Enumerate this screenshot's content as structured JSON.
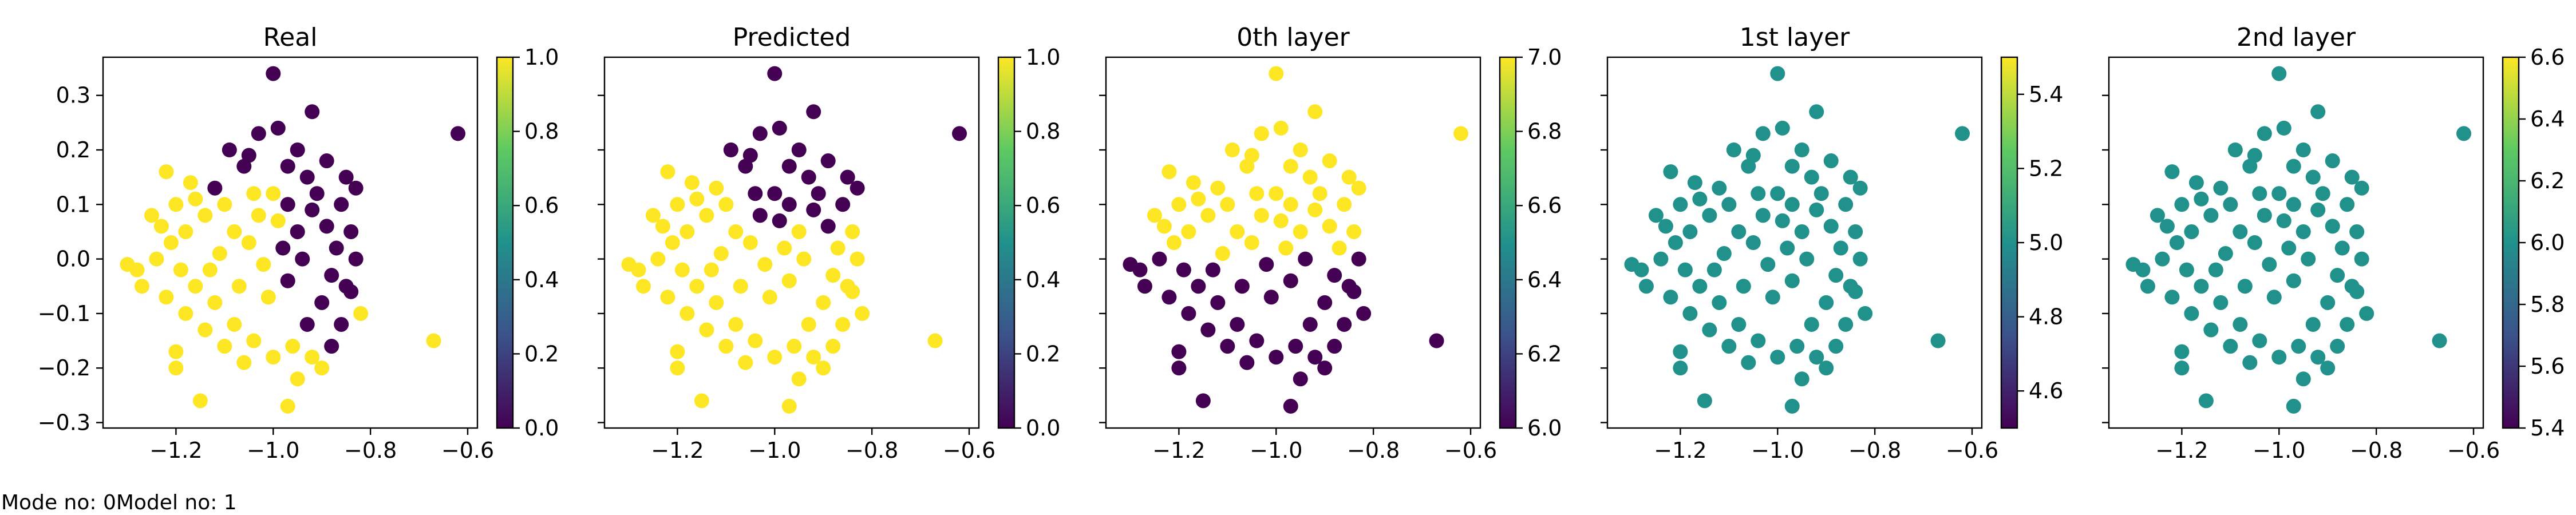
{
  "footer": {
    "mode_text": "Mode no: 0",
    "model_text": "Model no: 1"
  },
  "colormap": [
    "#440154",
    "#3b528b",
    "#21918c",
    "#5ec962",
    "#fde725"
  ],
  "chart_data": [
    {
      "type": "scatter",
      "title": "Real",
      "coloring": "real",
      "xlim": [
        -1.35,
        -0.58
      ],
      "ylim": [
        -0.31,
        0.37
      ],
      "xticks": [
        "−1.2",
        "−1.0",
        "−0.8",
        "−0.6"
      ],
      "xtick_values": [
        -1.2,
        -1.0,
        -0.8,
        -0.6
      ],
      "yticks": [
        "−0.3",
        "−0.2",
        "−0.1",
        "0.0",
        "0.1",
        "0.2",
        "0.3"
      ],
      "ytick_values": [
        -0.3,
        -0.2,
        -0.1,
        0.0,
        0.1,
        0.2,
        0.3
      ],
      "show_yticklabels": true,
      "colorbar": {
        "vmin": 0.0,
        "vmax": 1.0,
        "ticks": [
          "0.0",
          "0.2",
          "0.4",
          "0.6",
          "0.8",
          "1.0"
        ],
        "tick_values": [
          0.0,
          0.2,
          0.4,
          0.6,
          0.8,
          1.0
        ]
      }
    },
    {
      "type": "scatter",
      "title": "Predicted",
      "coloring": "pred",
      "xlim": [
        -1.35,
        -0.58
      ],
      "ylim": [
        -0.31,
        0.37
      ],
      "xticks": [
        "−1.2",
        "−1.0",
        "−0.8",
        "−0.6"
      ],
      "xtick_values": [
        -1.2,
        -1.0,
        -0.8,
        -0.6
      ],
      "yticks": [],
      "ytick_values": [
        -0.3,
        -0.2,
        -0.1,
        0.0,
        0.1,
        0.2,
        0.3
      ],
      "show_yticklabels": false,
      "colorbar": {
        "vmin": 0.0,
        "vmax": 1.0,
        "ticks": [
          "0.0",
          "0.2",
          "0.4",
          "0.6",
          "0.8",
          "1.0"
        ],
        "tick_values": [
          0.0,
          0.2,
          0.4,
          0.6,
          0.8,
          1.0
        ]
      }
    },
    {
      "type": "scatter",
      "title": "0th layer",
      "coloring": "layer0",
      "xlim": [
        -1.35,
        -0.58
      ],
      "ylim": [
        -0.31,
        0.37
      ],
      "xticks": [
        "−1.2",
        "−1.0",
        "−0.8",
        "−0.6"
      ],
      "xtick_values": [
        -1.2,
        -1.0,
        -0.8,
        -0.6
      ],
      "yticks": [],
      "ytick_values": [
        -0.3,
        -0.2,
        -0.1,
        0.0,
        0.1,
        0.2,
        0.3
      ],
      "show_yticklabels": false,
      "colorbar": {
        "vmin": 6.0,
        "vmax": 7.0,
        "ticks": [
          "6.0",
          "6.2",
          "6.4",
          "6.6",
          "6.8",
          "7.0"
        ],
        "tick_values": [
          6.0,
          6.2,
          6.4,
          6.6,
          6.8,
          7.0
        ]
      }
    },
    {
      "type": "scatter",
      "title": "1st layer",
      "coloring": "flat",
      "xlim": [
        -1.35,
        -0.58
      ],
      "ylim": [
        -0.31,
        0.37
      ],
      "xticks": [
        "−1.2",
        "−1.0",
        "−0.8",
        "−0.6"
      ],
      "xtick_values": [
        -1.2,
        -1.0,
        -0.8,
        -0.6
      ],
      "yticks": [],
      "ytick_values": [
        -0.3,
        -0.2,
        -0.1,
        0.0,
        0.1,
        0.2,
        0.3
      ],
      "show_yticklabels": false,
      "colorbar": {
        "vmin": 4.5,
        "vmax": 5.5,
        "ticks": [
          "4.6",
          "4.8",
          "5.0",
          "5.2",
          "5.4"
        ],
        "tick_values": [
          4.6,
          4.8,
          5.0,
          5.2,
          5.4
        ]
      }
    },
    {
      "type": "scatter",
      "title": "2nd layer",
      "coloring": "flat",
      "xlim": [
        -1.35,
        -0.58
      ],
      "ylim": [
        -0.31,
        0.37
      ],
      "xticks": [
        "−1.2",
        "−1.0",
        "−0.8",
        "−0.6"
      ],
      "xtick_values": [
        -1.2,
        -1.0,
        -0.8,
        -0.6
      ],
      "yticks": [],
      "ytick_values": [
        -0.3,
        -0.2,
        -0.1,
        0.0,
        0.1,
        0.2,
        0.3
      ],
      "show_yticklabels": false,
      "colorbar": {
        "vmin": 5.4,
        "vmax": 6.6,
        "ticks": [
          "5.4",
          "5.6",
          "5.8",
          "6.0",
          "6.2",
          "6.4",
          "6.6"
        ],
        "tick_values": [
          5.4,
          5.6,
          5.8,
          6.0,
          6.2,
          6.4,
          6.6
        ]
      }
    }
  ],
  "points": [
    [
      -1.0,
      0.34
    ],
    [
      -0.62,
      0.23
    ],
    [
      -0.67,
      -0.15
    ],
    [
      -0.85,
      -0.05
    ],
    [
      -0.82,
      -0.1
    ],
    [
      -1.3,
      -0.01
    ],
    [
      -1.28,
      -0.02
    ],
    [
      -1.2,
      -0.17
    ],
    [
      -1.15,
      -0.26
    ],
    [
      -0.97,
      -0.27
    ],
    [
      -0.92,
      0.27
    ],
    [
      -1.03,
      0.23
    ],
    [
      -1.22,
      0.16
    ],
    [
      -0.85,
      0.15
    ],
    [
      -0.83,
      0.13
    ],
    [
      -1.25,
      0.08
    ],
    [
      -1.2,
      -0.2
    ],
    [
      -0.95,
      -0.22
    ],
    [
      -0.9,
      -0.2
    ],
    [
      -1.27,
      -0.05
    ],
    [
      -0.99,
      0.24
    ],
    [
      -1.06,
      0.17
    ],
    [
      -1.09,
      0.2
    ],
    [
      -0.95,
      0.2
    ],
    [
      -0.89,
      0.18
    ],
    [
      -1.0,
      0.12
    ],
    [
      -0.97,
      0.1
    ],
    [
      -1.04,
      0.12
    ],
    [
      -1.1,
      0.1
    ],
    [
      -1.14,
      0.08
    ],
    [
      -1.18,
      0.05
    ],
    [
      -1.21,
      0.03
    ],
    [
      -1.19,
      -0.02
    ],
    [
      -1.16,
      -0.05
    ],
    [
      -1.12,
      -0.08
    ],
    [
      -1.08,
      -0.12
    ],
    [
      -1.04,
      -0.15
    ],
    [
      -1.0,
      -0.18
    ],
    [
      -0.96,
      -0.16
    ],
    [
      -0.93,
      -0.12
    ],
    [
      -0.9,
      -0.08
    ],
    [
      -0.88,
      -0.03
    ],
    [
      -0.87,
      0.02
    ],
    [
      -0.89,
      0.06
    ],
    [
      -0.92,
      0.09
    ],
    [
      -0.95,
      0.05
    ],
    [
      -0.98,
      0.02
    ],
    [
      -1.02,
      -0.01
    ],
    [
      -1.05,
      0.03
    ],
    [
      -1.08,
      0.05
    ],
    [
      -1.11,
      0.01
    ],
    [
      -1.13,
      -0.02
    ],
    [
      -1.07,
      -0.05
    ],
    [
      -1.01,
      -0.07
    ],
    [
      -0.97,
      -0.04
    ],
    [
      -0.94,
      0.0
    ],
    [
      -0.99,
      0.07
    ],
    [
      -1.03,
      0.08
    ],
    [
      -1.12,
      0.13
    ],
    [
      -1.16,
      0.11
    ],
    [
      -0.93,
      0.15
    ],
    [
      -0.91,
      0.12
    ],
    [
      -0.86,
      0.1
    ],
    [
      -0.84,
      0.05
    ],
    [
      -0.83,
      0.0
    ],
    [
      -0.84,
      -0.06
    ],
    [
      -0.86,
      -0.12
    ],
    [
      -0.88,
      -0.16
    ],
    [
      -0.92,
      -0.18
    ],
    [
      -1.06,
      -0.19
    ],
    [
      -1.1,
      -0.16
    ],
    [
      -1.14,
      -0.13
    ],
    [
      -1.18,
      -0.1
    ],
    [
      -1.22,
      -0.07
    ],
    [
      -1.24,
      0.0
    ],
    [
      -1.23,
      0.06
    ],
    [
      -1.2,
      0.1
    ],
    [
      -1.17,
      0.14
    ],
    [
      -1.05,
      0.19
    ],
    [
      -0.97,
      0.17
    ]
  ]
}
